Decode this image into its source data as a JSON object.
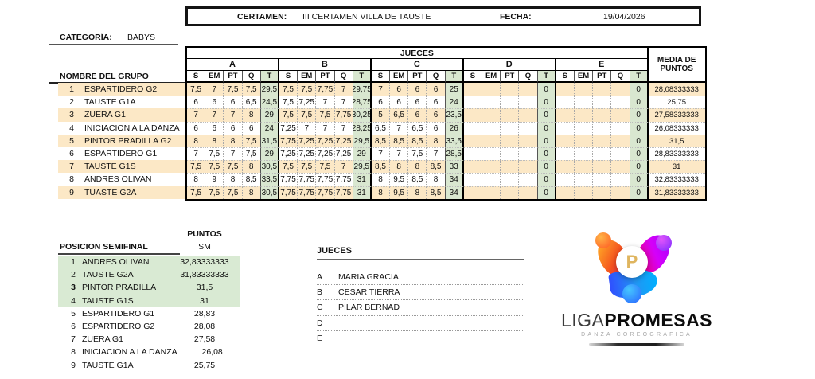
{
  "header": {
    "certamen_label": "CERTAMEN:",
    "certamen_value": "III CERTAMEN VILLA DE TAUSTE",
    "fecha_label": "FECHA:",
    "fecha_value": "19/04/2026"
  },
  "categoria": {
    "label": "CATEGORÍA:",
    "value": "BABYS"
  },
  "table": {
    "jueces_header": "JUECES",
    "media_header": "MEDIA DE PUNTOS",
    "nombre_label": "NOMBRE DEL GRUPO",
    "judges": [
      "A",
      "B",
      "C",
      "D",
      "E"
    ],
    "subcols": [
      "S",
      "EM",
      "PT",
      "Q",
      "T"
    ],
    "rows": [
      {
        "num": "1",
        "name": "ESPARTIDERO G2",
        "scores": [
          [
            "7,5",
            "7",
            "7,5",
            "7,5",
            "29,5"
          ],
          [
            "7,5",
            "7,5",
            "7,75",
            "7",
            "29,75"
          ],
          [
            "7",
            "6",
            "6",
            "6",
            "25"
          ],
          [
            "",
            "",
            "",
            "",
            "0"
          ],
          [
            "",
            "",
            "",
            "",
            "0"
          ]
        ],
        "media": "28,08333333"
      },
      {
        "num": "2",
        "name": "TAUSTE G1A",
        "scores": [
          [
            "6",
            "6",
            "6",
            "6,5",
            "24,5"
          ],
          [
            "7,5",
            "7,25",
            "7",
            "7",
            "28,75"
          ],
          [
            "6",
            "6",
            "6",
            "6",
            "24"
          ],
          [
            "",
            "",
            "",
            "",
            "0"
          ],
          [
            "",
            "",
            "",
            "",
            "0"
          ]
        ],
        "media": "25,75"
      },
      {
        "num": "3",
        "name": "ZUERA G1",
        "scores": [
          [
            "7",
            "7",
            "7",
            "8",
            "29"
          ],
          [
            "7,5",
            "7,5",
            "7,5",
            "7,75",
            "30,25"
          ],
          [
            "5",
            "6,5",
            "6",
            "6",
            "23,5"
          ],
          [
            "",
            "",
            "",
            "",
            "0"
          ],
          [
            "",
            "",
            "",
            "",
            "0"
          ]
        ],
        "media": "27,58333333"
      },
      {
        "num": "4",
        "name": "INICIACION A LA DANZA",
        "scores": [
          [
            "6",
            "6",
            "6",
            "6",
            "24"
          ],
          [
            "7,25",
            "7",
            "7",
            "7",
            "28,25"
          ],
          [
            "6,5",
            "7",
            "6,5",
            "6",
            "26"
          ],
          [
            "",
            "",
            "",
            "",
            "0"
          ],
          [
            "",
            "",
            "",
            "",
            "0"
          ]
        ],
        "media": "26,08333333"
      },
      {
        "num": "5",
        "name": "PINTOR PRADILLA G2",
        "scores": [
          [
            "8",
            "8",
            "8",
            "7,5",
            "31,5"
          ],
          [
            "7,75",
            "7,25",
            "7,25",
            "7,25",
            "29,5"
          ],
          [
            "8,5",
            "8,5",
            "8,5",
            "8",
            "33,5"
          ],
          [
            "",
            "",
            "",
            "",
            "0"
          ],
          [
            "",
            "",
            "",
            "",
            "0"
          ]
        ],
        "media": "31,5"
      },
      {
        "num": "6",
        "name": "ESPARTIDERO G1",
        "scores": [
          [
            "7",
            "7,5",
            "7",
            "7,5",
            "29"
          ],
          [
            "7,25",
            "7,25",
            "7,25",
            "7,25",
            "29"
          ],
          [
            "7",
            "7",
            "7,5",
            "7",
            "28,5"
          ],
          [
            "",
            "",
            "",
            "",
            "0"
          ],
          [
            "",
            "",
            "",
            "",
            "0"
          ]
        ],
        "media": "28,83333333"
      },
      {
        "num": "7",
        "name": "TAUSTE G1S",
        "scores": [
          [
            "7,5",
            "7,5",
            "7,5",
            "8",
            "30,5"
          ],
          [
            "7,5",
            "7,5",
            "7,5",
            "7",
            "29,5"
          ],
          [
            "8,5",
            "8",
            "8",
            "8,5",
            "33"
          ],
          [
            "",
            "",
            "",
            "",
            "0"
          ],
          [
            "",
            "",
            "",
            "",
            "0"
          ]
        ],
        "media": "31"
      },
      {
        "num": "8",
        "name": "ANDRES OLIVAN",
        "scores": [
          [
            "8",
            "9",
            "8",
            "8,5",
            "33,5"
          ],
          [
            "7,75",
            "7,75",
            "7,75",
            "7,75",
            "31"
          ],
          [
            "8",
            "9,5",
            "8,5",
            "8",
            "34"
          ],
          [
            "",
            "",
            "",
            "",
            "0"
          ],
          [
            "",
            "",
            "",
            "",
            "0"
          ]
        ],
        "media": "32,83333333"
      },
      {
        "num": "9",
        "name": "TUASTE G2A",
        "scores": [
          [
            "7,5",
            "7,5",
            "7,5",
            "8",
            "30,5"
          ],
          [
            "7,75",
            "7,75",
            "7,75",
            "7,75",
            "31"
          ],
          [
            "8",
            "9,5",
            "8",
            "8,5",
            "34"
          ],
          [
            "",
            "",
            "",
            "",
            "0"
          ],
          [
            "",
            "",
            "",
            "",
            "0"
          ]
        ],
        "media": "31,83333333"
      }
    ]
  },
  "semifinal": {
    "puntos_label": "PUNTOS",
    "sm_label": "SM",
    "title": "POSICION SEMIFINAL",
    "rows": [
      {
        "pos": "1",
        "name": "ANDRES OLIVAN",
        "points": "32,83333333",
        "highlight": true,
        "bold_pos": false
      },
      {
        "pos": "2",
        "name": "TAUSTE G2A",
        "points": "31,83333333",
        "highlight": true,
        "bold_pos": false
      },
      {
        "pos": "3",
        "name": "PINTOR PRADILLA",
        "points": "31,5",
        "highlight": true,
        "bold_pos": true
      },
      {
        "pos": "4",
        "name": "TAUSTE G1S",
        "points": "31",
        "highlight": true,
        "bold_pos": false
      },
      {
        "pos": "5",
        "name": "ESPARTIDERO G1",
        "points": "28,83",
        "highlight": false,
        "bold_pos": false
      },
      {
        "pos": "6",
        "name": "ESPARTIDERO G2",
        "points": "28,08",
        "highlight": false,
        "bold_pos": false
      },
      {
        "pos": "7",
        "name": "ZUERA G1",
        "points": "27,58",
        "highlight": false,
        "bold_pos": false
      },
      {
        "pos": "8",
        "name": "INICIACION A LA DANZA",
        "points": "26,08",
        "highlight": false,
        "bold_pos": false
      },
      {
        "pos": "9",
        "name": "TAUSTE G1A",
        "points": "25,75",
        "highlight": false,
        "bold_pos": false
      }
    ]
  },
  "jueces_list": {
    "title": "JUECES",
    "entries": [
      {
        "letter": "A",
        "name": "MARIA GRACIA"
      },
      {
        "letter": "B",
        "name": "CESAR TIERRA"
      },
      {
        "letter": "C",
        "name": "PILAR BERNAD"
      },
      {
        "letter": "D",
        "name": ""
      },
      {
        "letter": "E",
        "name": ""
      }
    ]
  },
  "logo": {
    "brand_light": "LIGA",
    "brand_bold": "PROMESAS",
    "tagline": "DANZA COREOGRAFICA",
    "mark_letter": "P"
  },
  "colors": {
    "row_tan": "#fce8c6",
    "total_green": "#d9e7d0",
    "semifinal_green": "#d9ead3"
  }
}
